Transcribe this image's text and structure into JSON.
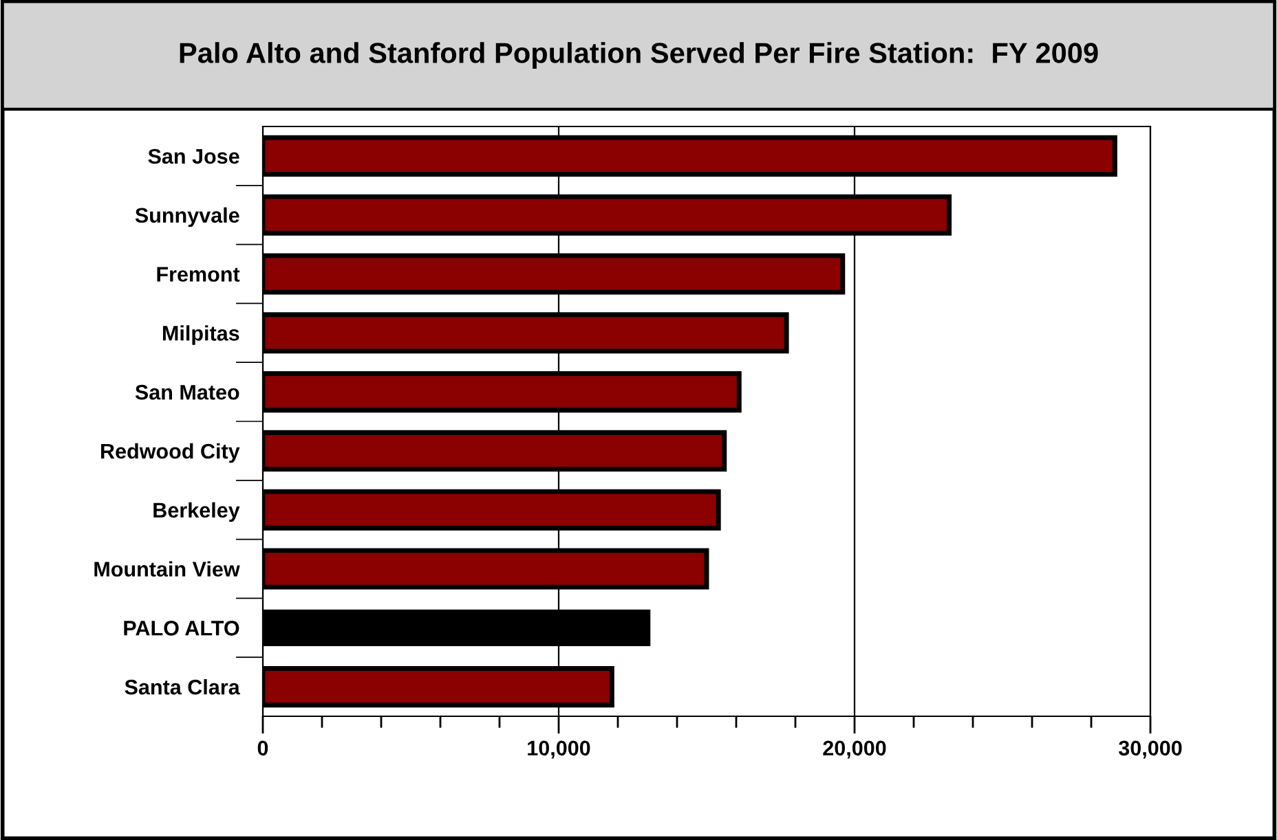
{
  "chart_data": {
    "type": "bar",
    "orientation": "horizontal",
    "title": "Palo Alto and Stanford Population Served Per Fire Station:  FY 2009",
    "categories": [
      "San Jose",
      "Sunnyvale",
      "Fremont",
      "Milpitas",
      "San Mateo",
      "Redwood City",
      "Berkeley",
      "Mountain View",
      "PALO ALTO",
      "Santa Clara"
    ],
    "values": [
      28800,
      23200,
      19600,
      17700,
      16100,
      15600,
      15400,
      15000,
      13100,
      11800
    ],
    "colors": [
      "#8b0000",
      "#8b0000",
      "#8b0000",
      "#8b0000",
      "#8b0000",
      "#8b0000",
      "#8b0000",
      "#8b0000",
      "#000000",
      "#8b0000"
    ],
    "xlim": [
      0,
      30000
    ],
    "xticks": [
      {
        "value": 0,
        "label": "0"
      },
      {
        "value": 10000,
        "label": "10,000"
      },
      {
        "value": 20000,
        "label": "20,000"
      },
      {
        "value": 30000,
        "label": "30,000"
      }
    ],
    "grid": "x",
    "legend": false
  }
}
